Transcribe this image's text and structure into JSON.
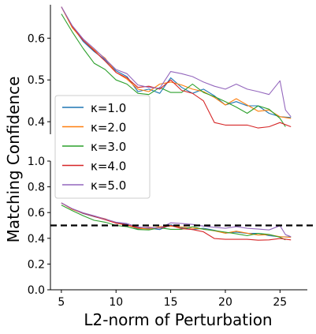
{
  "chart_data": {
    "type": "line",
    "ylabel": "Matching Confidence",
    "xlabel": "L2-norm of Perturbation",
    "x_ticks": [
      5,
      10,
      15,
      20,
      25
    ],
    "xlim": [
      4,
      27.5
    ],
    "top_panel": {
      "ylim": [
        0.37,
        0.68
      ],
      "y_ticks": [
        0.4,
        0.5,
        0.6
      ]
    },
    "bottom_panel": {
      "ylim": [
        0.0,
        1.0
      ],
      "y_ticks": [
        0.0,
        0.2,
        0.4,
        0.6,
        0.8,
        1.0
      ]
    },
    "threshold": {
      "value": 0.5,
      "style": "dashed",
      "color": "#000000"
    },
    "legend": {
      "placement": "center-left"
    },
    "grid": false,
    "series": [
      {
        "name": "κ=1.0",
        "color": "#1f77b4",
        "x": [
          5,
          6,
          7,
          8,
          9,
          10,
          11,
          12,
          13,
          14,
          15,
          16,
          17,
          18,
          19,
          20,
          21,
          22,
          23,
          24,
          25,
          26
        ],
        "y": [
          0.675,
          0.628,
          0.592,
          0.568,
          0.548,
          0.522,
          0.508,
          0.472,
          0.478,
          0.468,
          0.505,
          0.482,
          0.468,
          0.478,
          0.462,
          0.44,
          0.448,
          0.438,
          0.438,
          0.42,
          0.412,
          0.41
        ]
      },
      {
        "name": "κ=2.0",
        "color": "#ff7f0e",
        "x": [
          5,
          6,
          7,
          8,
          9,
          10,
          11,
          12,
          13,
          14,
          15,
          16,
          17,
          18,
          19,
          20,
          21,
          22,
          23,
          24,
          25,
          26
        ],
        "y": [
          0.675,
          0.625,
          0.595,
          0.572,
          0.552,
          0.518,
          0.502,
          0.478,
          0.472,
          0.49,
          0.495,
          0.488,
          0.478,
          0.472,
          0.458,
          0.44,
          0.455,
          0.44,
          0.425,
          0.428,
          0.412,
          0.408
        ]
      },
      {
        "name": "κ=3.0",
        "color": "#2ca02c",
        "x": [
          5,
          6,
          7,
          8,
          9,
          10,
          11,
          12,
          13,
          14,
          15,
          16,
          17,
          18,
          19,
          20,
          21,
          22,
          23,
          24,
          25,
          25.5
        ],
        "y": [
          0.658,
          0.615,
          0.575,
          0.54,
          0.525,
          0.5,
          0.49,
          0.468,
          0.465,
          0.482,
          0.47,
          0.47,
          0.49,
          0.47,
          0.46,
          0.448,
          0.435,
          0.42,
          0.438,
          0.43,
          0.408,
          0.388
        ]
      },
      {
        "name": "κ=4.0",
        "color": "#d62728",
        "x": [
          5,
          6,
          7,
          8,
          9,
          10,
          11,
          12,
          13,
          14,
          15,
          16,
          17,
          18,
          19,
          20,
          21,
          22,
          23,
          24,
          25,
          26
        ],
        "y": [
          0.675,
          0.628,
          0.595,
          0.57,
          0.545,
          0.518,
          0.505,
          0.482,
          0.485,
          0.478,
          0.5,
          0.475,
          0.468,
          0.45,
          0.398,
          0.392,
          0.392,
          0.392,
          0.385,
          0.388,
          0.398,
          0.388
        ]
      },
      {
        "name": "κ=5.0",
        "color": "#9467bd",
        "x": [
          5,
          6,
          7,
          8,
          9,
          10,
          11,
          12,
          13,
          14,
          15,
          16,
          17,
          18,
          19,
          20,
          21,
          22,
          23,
          24,
          25,
          25.5,
          26
        ],
        "y": [
          0.675,
          0.63,
          0.598,
          0.575,
          0.55,
          0.525,
          0.515,
          0.488,
          0.482,
          0.48,
          0.52,
          0.515,
          0.508,
          0.495,
          0.485,
          0.478,
          0.49,
          0.478,
          0.472,
          0.465,
          0.498,
          0.428,
          0.412
        ]
      }
    ]
  }
}
